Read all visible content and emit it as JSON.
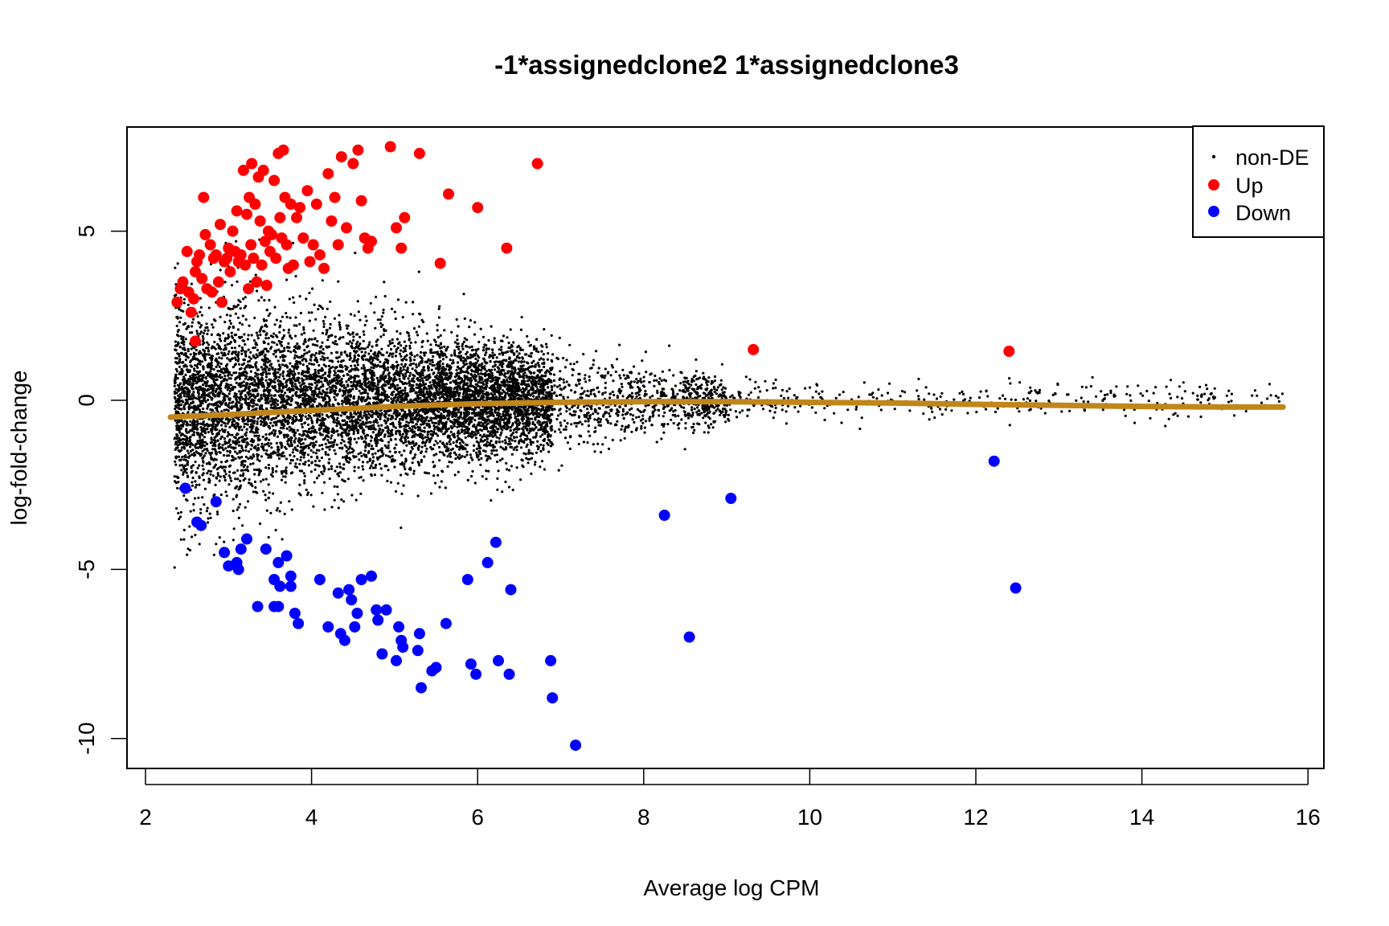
{
  "chart_data": {
    "type": "scatter",
    "title": "-1*assignedclone2 1*assignedclone3",
    "xlabel": "Average log CPM",
    "ylabel": "log-fold-change",
    "xlim": [
      1.78,
      16.19
    ],
    "ylim": [
      -10.9,
      8.1
    ],
    "xticks": [
      2,
      4,
      6,
      8,
      10,
      12,
      14,
      16
    ],
    "xtick_labels": [
      "2",
      "4",
      "6",
      "8",
      "10",
      "12",
      "14",
      "16"
    ],
    "yticks": [
      5,
      0,
      -5,
      -10
    ],
    "ytick_labels": [
      "5",
      "0",
      "-5",
      "-10"
    ],
    "grid": false,
    "legend": {
      "position": "top-right",
      "entries": [
        {
          "label": "non-DE",
          "color": "#000000",
          "marker": "small-dot"
        },
        {
          "label": "Up",
          "color": "#ff0000",
          "marker": "large-dot"
        },
        {
          "label": "Down",
          "color": "#0000ff",
          "marker": "large-dot"
        }
      ]
    },
    "colors": {
      "nonDE": "#000000",
      "up": "#ff0000",
      "down": "#0000ff",
      "trend": "#c0861a"
    },
    "series": [
      {
        "name": "Up",
        "points": [
          [
            2.38,
            2.9
          ],
          [
            2.42,
            3.3
          ],
          [
            2.45,
            3.5
          ],
          [
            2.5,
            4.4
          ],
          [
            2.52,
            3.2
          ],
          [
            2.55,
            2.6
          ],
          [
            2.58,
            3.0
          ],
          [
            2.6,
            1.75
          ],
          [
            2.6,
            3.8
          ],
          [
            2.62,
            4.1
          ],
          [
            2.65,
            4.3
          ],
          [
            2.68,
            3.6
          ],
          [
            2.7,
            6.0
          ],
          [
            2.72,
            4.9
          ],
          [
            2.74,
            3.3
          ],
          [
            2.78,
            4.6
          ],
          [
            2.8,
            3.2
          ],
          [
            2.82,
            4.2
          ],
          [
            2.85,
            4.3
          ],
          [
            2.88,
            3.5
          ],
          [
            2.9,
            5.2
          ],
          [
            2.92,
            2.9
          ],
          [
            2.95,
            4.1
          ],
          [
            2.98,
            4.2
          ],
          [
            3.0,
            4.5
          ],
          [
            3.02,
            3.8
          ],
          [
            3.05,
            5.0
          ],
          [
            3.08,
            4.4
          ],
          [
            3.1,
            5.6
          ],
          [
            3.12,
            4.1
          ],
          [
            3.15,
            4.3
          ],
          [
            3.18,
            6.8
          ],
          [
            3.2,
            4.0
          ],
          [
            3.22,
            5.5
          ],
          [
            3.24,
            3.3
          ],
          [
            3.25,
            6.0
          ],
          [
            3.27,
            4.6
          ],
          [
            3.28,
            7.0
          ],
          [
            3.3,
            4.2
          ],
          [
            3.32,
            5.8
          ],
          [
            3.34,
            3.5
          ],
          [
            3.36,
            6.6
          ],
          [
            3.38,
            5.3
          ],
          [
            3.4,
            4.0
          ],
          [
            3.42,
            6.8
          ],
          [
            3.44,
            4.7
          ],
          [
            3.46,
            3.4
          ],
          [
            3.48,
            5.0
          ],
          [
            3.5,
            4.4
          ],
          [
            3.52,
            4.9
          ],
          [
            3.55,
            6.5
          ],
          [
            3.57,
            4.2
          ],
          [
            3.6,
            7.3
          ],
          [
            3.62,
            5.4
          ],
          [
            3.64,
            4.8
          ],
          [
            3.66,
            7.4
          ],
          [
            3.68,
            6.0
          ],
          [
            3.7,
            4.6
          ],
          [
            3.72,
            3.9
          ],
          [
            3.75,
            5.8
          ],
          [
            3.78,
            4.0
          ],
          [
            3.82,
            5.4
          ],
          [
            3.86,
            5.7
          ],
          [
            3.9,
            4.8
          ],
          [
            3.95,
            6.2
          ],
          [
            3.98,
            4.1
          ],
          [
            4.02,
            4.6
          ],
          [
            4.06,
            5.8
          ],
          [
            4.1,
            4.3
          ],
          [
            4.15,
            3.9
          ],
          [
            4.2,
            6.7
          ],
          [
            4.24,
            5.3
          ],
          [
            4.28,
            6.0
          ],
          [
            4.32,
            4.6
          ],
          [
            4.36,
            7.2
          ],
          [
            4.42,
            5.1
          ],
          [
            4.5,
            7.0
          ],
          [
            4.56,
            7.4
          ],
          [
            4.6,
            5.9
          ],
          [
            4.64,
            4.8
          ],
          [
            4.68,
            4.5
          ],
          [
            4.72,
            4.7
          ],
          [
            4.95,
            7.5
          ],
          [
            5.02,
            5.1
          ],
          [
            5.08,
            4.5
          ],
          [
            5.12,
            5.4
          ],
          [
            5.3,
            7.3
          ],
          [
            5.55,
            4.05
          ],
          [
            5.65,
            6.1
          ],
          [
            6.0,
            5.7
          ],
          [
            6.35,
            4.5
          ],
          [
            6.72,
            7.0
          ],
          [
            9.32,
            1.5
          ],
          [
            12.4,
            1.45
          ]
        ]
      },
      {
        "name": "Down",
        "points": [
          [
            2.48,
            -2.6
          ],
          [
            2.85,
            -3.0
          ],
          [
            2.62,
            -3.6
          ],
          [
            2.67,
            -3.7
          ],
          [
            2.95,
            -4.5
          ],
          [
            3.1,
            -4.8
          ],
          [
            3.0,
            -4.9
          ],
          [
            3.12,
            -5.0
          ],
          [
            3.22,
            -4.1
          ],
          [
            3.15,
            -4.4
          ],
          [
            3.35,
            -6.1
          ],
          [
            3.45,
            -4.4
          ],
          [
            3.55,
            -5.3
          ],
          [
            3.6,
            -4.8
          ],
          [
            3.55,
            -6.1
          ],
          [
            3.6,
            -6.1
          ],
          [
            3.62,
            -5.5
          ],
          [
            3.7,
            -4.6
          ],
          [
            3.75,
            -5.2
          ],
          [
            3.75,
            -5.5
          ],
          [
            3.8,
            -6.3
          ],
          [
            3.84,
            -6.6
          ],
          [
            4.1,
            -5.3
          ],
          [
            4.2,
            -6.7
          ],
          [
            4.32,
            -5.7
          ],
          [
            4.35,
            -6.9
          ],
          [
            4.4,
            -7.1
          ],
          [
            4.45,
            -5.6
          ],
          [
            4.48,
            -5.9
          ],
          [
            4.52,
            -6.7
          ],
          [
            4.55,
            -6.3
          ],
          [
            4.6,
            -5.3
          ],
          [
            4.72,
            -5.2
          ],
          [
            4.78,
            -6.2
          ],
          [
            4.8,
            -6.5
          ],
          [
            4.85,
            -7.5
          ],
          [
            4.9,
            -6.2
          ],
          [
            5.02,
            -7.7
          ],
          [
            5.05,
            -6.7
          ],
          [
            5.08,
            -7.1
          ],
          [
            5.1,
            -7.3
          ],
          [
            5.28,
            -7.4
          ],
          [
            5.3,
            -6.9
          ],
          [
            5.32,
            -8.5
          ],
          [
            5.45,
            -8.0
          ],
          [
            5.5,
            -7.9
          ],
          [
            5.62,
            -6.6
          ],
          [
            5.88,
            -5.3
          ],
          [
            5.92,
            -7.8
          ],
          [
            5.98,
            -8.1
          ],
          [
            6.12,
            -4.8
          ],
          [
            6.22,
            -4.2
          ],
          [
            6.25,
            -7.7
          ],
          [
            6.38,
            -8.1
          ],
          [
            6.4,
            -5.6
          ],
          [
            6.88,
            -7.7
          ],
          [
            6.9,
            -8.8
          ],
          [
            7.18,
            -10.2
          ],
          [
            8.25,
            -3.4
          ],
          [
            8.55,
            -7.0
          ],
          [
            9.05,
            -2.9
          ],
          [
            12.22,
            -1.8
          ],
          [
            12.48,
            -5.55
          ]
        ]
      },
      {
        "name": "non-DE",
        "count_approx": 9000,
        "description_of_cloud": "dense cloud centred near 0, wide spread (±5) at low CPM narrowing to ±1 at high CPM"
      },
      {
        "name": "trend",
        "points": [
          [
            2.3,
            -0.5
          ],
          [
            3,
            -0.42
          ],
          [
            4,
            -0.3
          ],
          [
            5,
            -0.18
          ],
          [
            6,
            -0.1
          ],
          [
            7,
            -0.06
          ],
          [
            8,
            -0.04
          ],
          [
            9,
            -0.04
          ],
          [
            10,
            -0.06
          ],
          [
            11,
            -0.08
          ],
          [
            12,
            -0.12
          ],
          [
            13,
            -0.15
          ],
          [
            14,
            -0.18
          ],
          [
            15,
            -0.2
          ],
          [
            15.7,
            -0.2
          ]
        ]
      }
    ]
  }
}
